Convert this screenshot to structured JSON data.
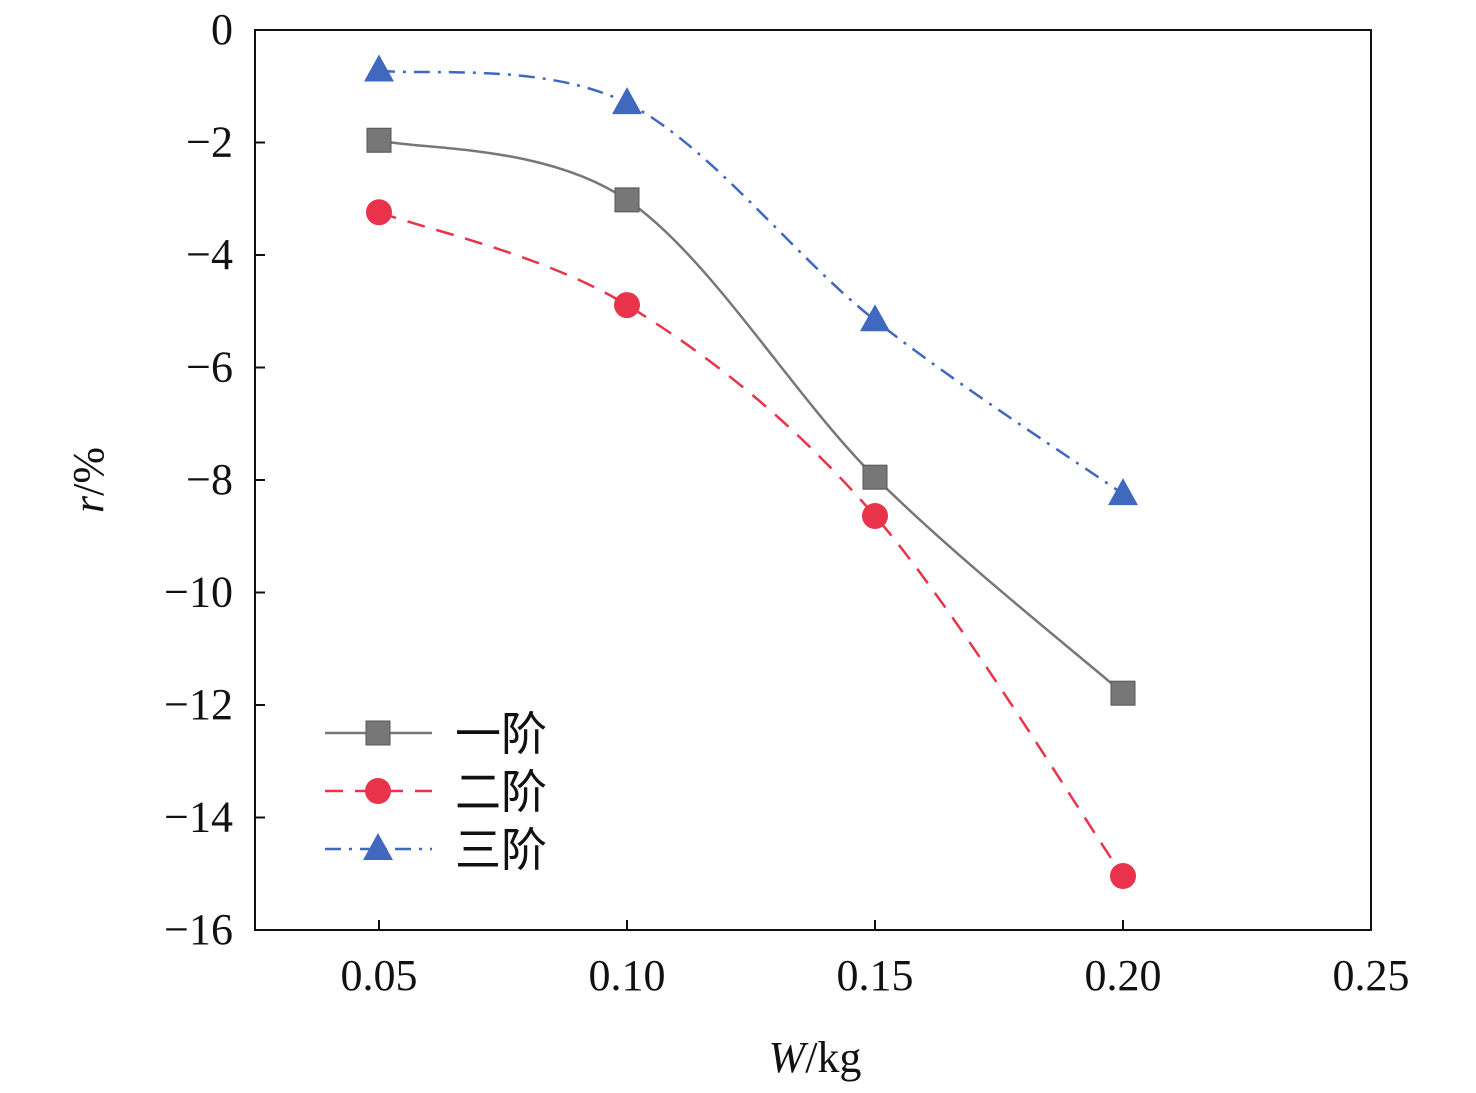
{
  "chart_data": {
    "type": "line",
    "title": "",
    "xlabel_italic": "W",
    "xlabel_unit": "/kg",
    "ylabel_italic": "r",
    "ylabel_unit": "/%",
    "xlim": [
      0.025,
      0.25
    ],
    "ylim": [
      -16,
      0
    ],
    "xticks": [
      0.05,
      0.1,
      0.15,
      0.2,
      0.25
    ],
    "xtick_labels": [
      "0.05",
      "0.10",
      "0.15",
      "0.20",
      "0.25"
    ],
    "yticks": [
      0,
      -2,
      -4,
      -6,
      -8,
      -10,
      -12,
      -14,
      -16
    ],
    "ytick_labels": [
      "0",
      "−2",
      "−4",
      "−6",
      "−8",
      "−10",
      "−12",
      "−14",
      "−16"
    ],
    "grid": false,
    "legend_position": "bottom-left",
    "x": [
      0.05,
      0.1,
      0.15,
      0.2
    ],
    "series": [
      {
        "name": "一阶",
        "values": [
          -1.96,
          -3.02,
          -7.95,
          -11.79
        ],
        "color": "#777777",
        "marker": "square",
        "dash": "solid"
      },
      {
        "name": "二阶",
        "values": [
          -3.24,
          -4.89,
          -8.64,
          -15.04
        ],
        "color": "#e8334a",
        "marker": "circle",
        "dash": "dashed"
      },
      {
        "name": "三阶",
        "values": [
          -0.72,
          -1.3,
          -5.16,
          -8.25
        ],
        "color": "#3f68be",
        "marker": "triangle",
        "dash": "dashdot"
      }
    ]
  }
}
